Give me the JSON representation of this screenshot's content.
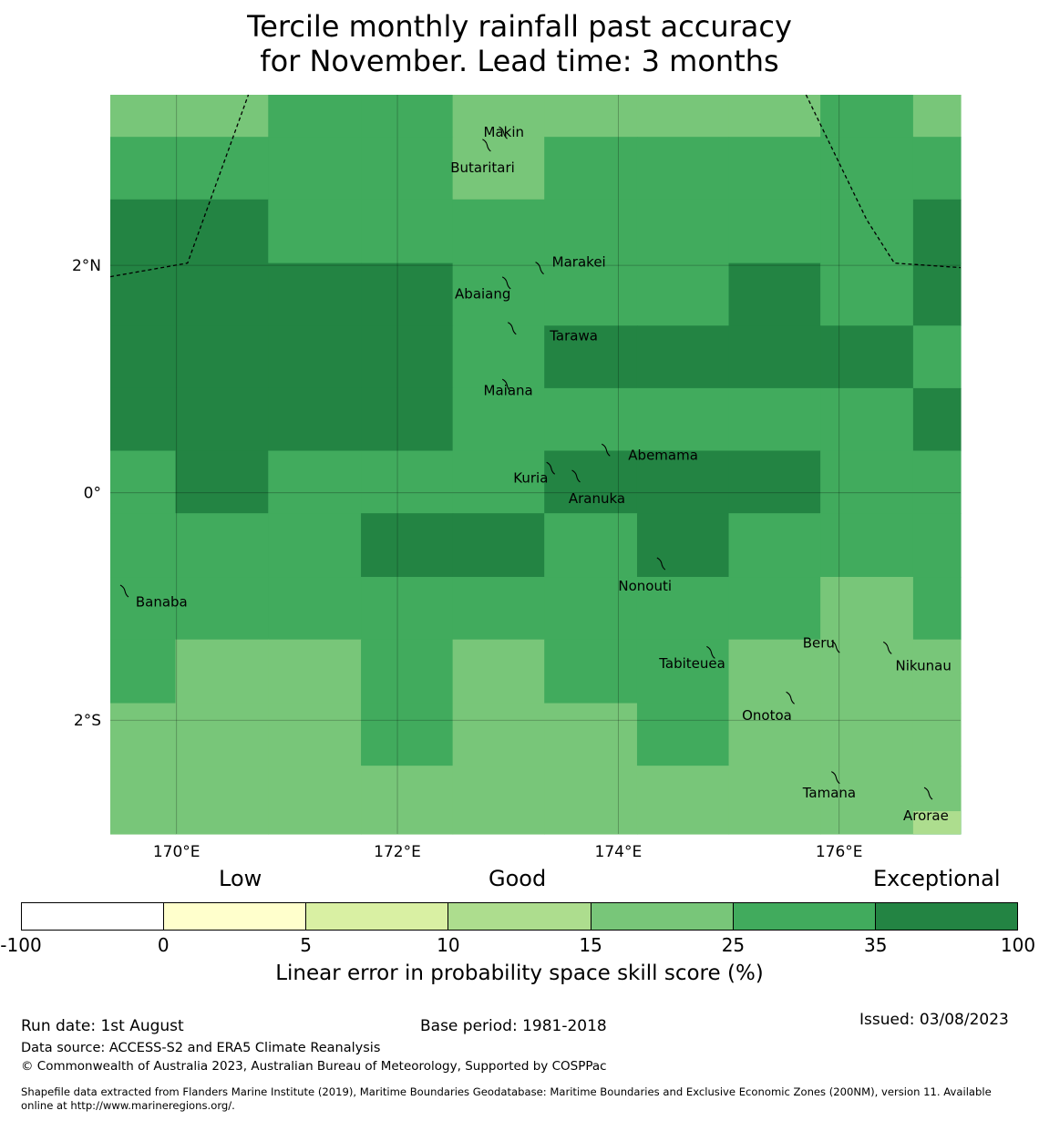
{
  "title": {
    "line1": "Tercile monthly rainfall past accuracy",
    "line2": "for November. Lead time: 3 months"
  },
  "map": {
    "lon_range": [
      169.4,
      177.1
    ],
    "lat_range": [
      -3.0,
      3.5
    ],
    "lon_ticks": [
      {
        "value": 170,
        "label": "170°E"
      },
      {
        "value": 172,
        "label": "172°E"
      },
      {
        "value": 174,
        "label": "174°E"
      },
      {
        "value": 176,
        "label": "176°E"
      }
    ],
    "lat_ticks": [
      {
        "value": 2,
        "label": "2°N"
      },
      {
        "value": 0,
        "label": "0°"
      },
      {
        "value": -2,
        "label": "2°S"
      }
    ],
    "grid": true,
    "grid_lon_edges": [
      169.4,
      169.99,
      170.83,
      171.67,
      172.5,
      173.33,
      174.17,
      175.0,
      175.83,
      176.67,
      177.1
    ],
    "grid_lat_edges": [
      3.5,
      3.13,
      2.58,
      2.02,
      1.47,
      0.92,
      0.37,
      -0.18,
      -0.74,
      -1.29,
      -1.85,
      -2.4,
      -3.0
    ],
    "cell_classes": [
      [
        4,
        4,
        5,
        5,
        4,
        4,
        4,
        4,
        5,
        4
      ],
      [
        5,
        5,
        5,
        5,
        4,
        5,
        5,
        5,
        5,
        5
      ],
      [
        6,
        6,
        5,
        5,
        5,
        5,
        5,
        5,
        5,
        6
      ],
      [
        6,
        6,
        6,
        6,
        5,
        5,
        5,
        6,
        5,
        6
      ],
      [
        6,
        6,
        6,
        6,
        5,
        6,
        6,
        6,
        6,
        5
      ],
      [
        6,
        6,
        6,
        6,
        5,
        5,
        5,
        5,
        5,
        6
      ],
      [
        5,
        6,
        5,
        5,
        5,
        6,
        6,
        6,
        5,
        5
      ],
      [
        5,
        5,
        5,
        6,
        6,
        5,
        6,
        5,
        5,
        5
      ],
      [
        5,
        5,
        5,
        5,
        5,
        5,
        5,
        5,
        4,
        5
      ],
      [
        5,
        4,
        4,
        5,
        4,
        5,
        5,
        4,
        4,
        4
      ],
      [
        4,
        4,
        4,
        5,
        4,
        4,
        5,
        4,
        4,
        4
      ],
      [
        4,
        4,
        4,
        4,
        4,
        4,
        4,
        4,
        4,
        4
      ]
    ],
    "bottom_right_cell": {
      "lon": [
        176.67,
        177.1
      ],
      "lat": [
        -3.0,
        -2.8
      ],
      "class": 3
    },
    "boundaries": [
      {
        "points": [
          [
            169.4,
            1.9
          ],
          [
            170.1,
            2.02
          ],
          [
            170.65,
            3.5
          ]
        ]
      },
      {
        "points": [
          [
            175.7,
            3.5
          ],
          [
            176.25,
            2.4
          ],
          [
            176.5,
            2.02
          ],
          [
            177.1,
            1.98
          ]
        ]
      }
    ],
    "islands": [
      {
        "name": "Makin",
        "lon": 172.97,
        "lat": 3.17,
        "label_lon": 172.78,
        "label_lat": 3.17
      },
      {
        "name": "Butaritari",
        "lon": 172.82,
        "lat": 3.06,
        "label_lon": 172.48,
        "label_lat": 2.86
      },
      {
        "name": "Marakei",
        "lon": 173.3,
        "lat": 1.98,
        "label_lon": 173.4,
        "label_lat": 2.03
      },
      {
        "name": "Abaiang",
        "lon": 173.0,
        "lat": 1.85,
        "label_lon": 172.52,
        "label_lat": 1.75
      },
      {
        "name": "Tarawa",
        "lon": 173.05,
        "lat": 1.45,
        "label_lon": 173.38,
        "label_lat": 1.38
      },
      {
        "name": "Maiana",
        "lon": 173.0,
        "lat": 0.95,
        "label_lon": 172.78,
        "label_lat": 0.9
      },
      {
        "name": "Abemama",
        "lon": 173.9,
        "lat": 0.38,
        "label_lon": 174.09,
        "label_lat": 0.33
      },
      {
        "name": "Kuria",
        "lon": 173.4,
        "lat": 0.22,
        "label_lon": 173.05,
        "label_lat": 0.13
      },
      {
        "name": "Aranuka",
        "lon": 173.63,
        "lat": 0.15,
        "label_lon": 173.55,
        "label_lat": -0.05
      },
      {
        "name": "Nonouti",
        "lon": 174.4,
        "lat": -0.62,
        "label_lon": 174.0,
        "label_lat": -0.82
      },
      {
        "name": "Banaba",
        "lon": 169.54,
        "lat": -0.86,
        "label_lon": 169.63,
        "label_lat": -0.96
      },
      {
        "name": "Tabiteuea",
        "lon": 174.85,
        "lat": -1.4,
        "label_lon": 174.37,
        "label_lat": -1.5
      },
      {
        "name": "Beru",
        "lon": 175.98,
        "lat": -1.35,
        "label_lon": 175.67,
        "label_lat": -1.32
      },
      {
        "name": "Nikunau",
        "lon": 176.45,
        "lat": -1.36,
        "label_lon": 176.51,
        "label_lat": -1.52
      },
      {
        "name": "Onotoa",
        "lon": 175.57,
        "lat": -1.8,
        "label_lon": 175.12,
        "label_lat": -1.96
      },
      {
        "name": "Tamana",
        "lon": 175.98,
        "lat": -2.5,
        "label_lon": 175.67,
        "label_lat": -2.64
      },
      {
        "name": "Arorae",
        "lon": 176.82,
        "lat": -2.64,
        "label_lon": 176.58,
        "label_lat": -2.84
      }
    ]
  },
  "legend": {
    "categories": {
      "low": "Low",
      "good": "Good",
      "exceptional": "Exceptional"
    },
    "colors": [
      "#ffffff",
      "#ffffcc",
      "#d9f0a3",
      "#addd8e",
      "#78c679",
      "#41ab5d",
      "#238443"
    ],
    "ticks": [
      "-100",
      "0",
      "5",
      "10",
      "15",
      "25",
      "35",
      "100"
    ],
    "label": "Linear error in probability space skill score (%)"
  },
  "footer": {
    "run_date": "Run date: 1st August",
    "base_period": "Base period: 1981-2018",
    "issued": "Issued: 03/08/2023",
    "data_source": "Data source: ACCESS-S2 and ERA5 Climate Reanalysis",
    "copyright": "© Commonwealth of Australia 2023, Australian Bureau of Meteorology, Supported by COSPPac",
    "shapefile_line1": "Shapefile data extracted from Flanders Marine Institute (2019), Maritime Boundaries Geodatabase: Maritime Boundaries and Exclusive Economic Zones (200NM), version 11. Available",
    "shapefile_line2": "online at http://www.marineregions.org/."
  }
}
